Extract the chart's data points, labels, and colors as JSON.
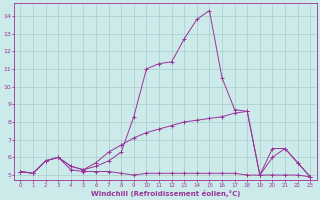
{
  "xlabel": "Windchill (Refroidissement éolien,°C)",
  "bg_color": "#cceaea",
  "line_color": "#993399",
  "grid_color": "#b0d8d8",
  "xlim": [
    -0.5,
    23.5
  ],
  "ylim": [
    4.7,
    14.7
  ],
  "yticks": [
    5,
    6,
    7,
    8,
    9,
    10,
    11,
    12,
    13,
    14
  ],
  "xticks": [
    0,
    1,
    2,
    3,
    4,
    5,
    6,
    7,
    8,
    9,
    10,
    11,
    12,
    13,
    14,
    15,
    16,
    17,
    18,
    19,
    20,
    21,
    22,
    23
  ],
  "line1_x": [
    0,
    1,
    2,
    3,
    4,
    5,
    6,
    7,
    8,
    9,
    10,
    11,
    12,
    13,
    14,
    15,
    16,
    17,
    18,
    19,
    20,
    21,
    22,
    23
  ],
  "line1_y": [
    5.2,
    5.1,
    5.8,
    6.0,
    5.3,
    5.2,
    5.2,
    5.2,
    5.1,
    5.0,
    5.1,
    5.1,
    5.1,
    5.1,
    5.1,
    5.1,
    5.1,
    5.1,
    5.0,
    5.0,
    5.0,
    5.0,
    5.0,
    4.9
  ],
  "line2_x": [
    0,
    1,
    2,
    3,
    4,
    5,
    6,
    7,
    8,
    9,
    10,
    11,
    12,
    13,
    14,
    15,
    16,
    17,
    18,
    19,
    20,
    21,
    22,
    23
  ],
  "line2_y": [
    5.2,
    5.1,
    5.8,
    6.0,
    5.5,
    5.3,
    5.5,
    5.8,
    6.3,
    8.3,
    11.0,
    11.3,
    11.4,
    12.7,
    13.8,
    14.3,
    10.5,
    8.7,
    8.6,
    5.0,
    6.5,
    6.5,
    5.7,
    4.9
  ],
  "line3_x": [
    0,
    1,
    2,
    3,
    4,
    5,
    6,
    7,
    8,
    9,
    10,
    11,
    12,
    13,
    14,
    15,
    16,
    17,
    18,
    19,
    20,
    21,
    22,
    23
  ],
  "line3_y": [
    5.2,
    5.1,
    5.8,
    6.0,
    5.5,
    5.3,
    5.7,
    6.3,
    6.7,
    7.1,
    7.4,
    7.6,
    7.8,
    8.0,
    8.1,
    8.2,
    8.3,
    8.5,
    8.6,
    5.0,
    6.0,
    6.5,
    5.7,
    4.9
  ]
}
